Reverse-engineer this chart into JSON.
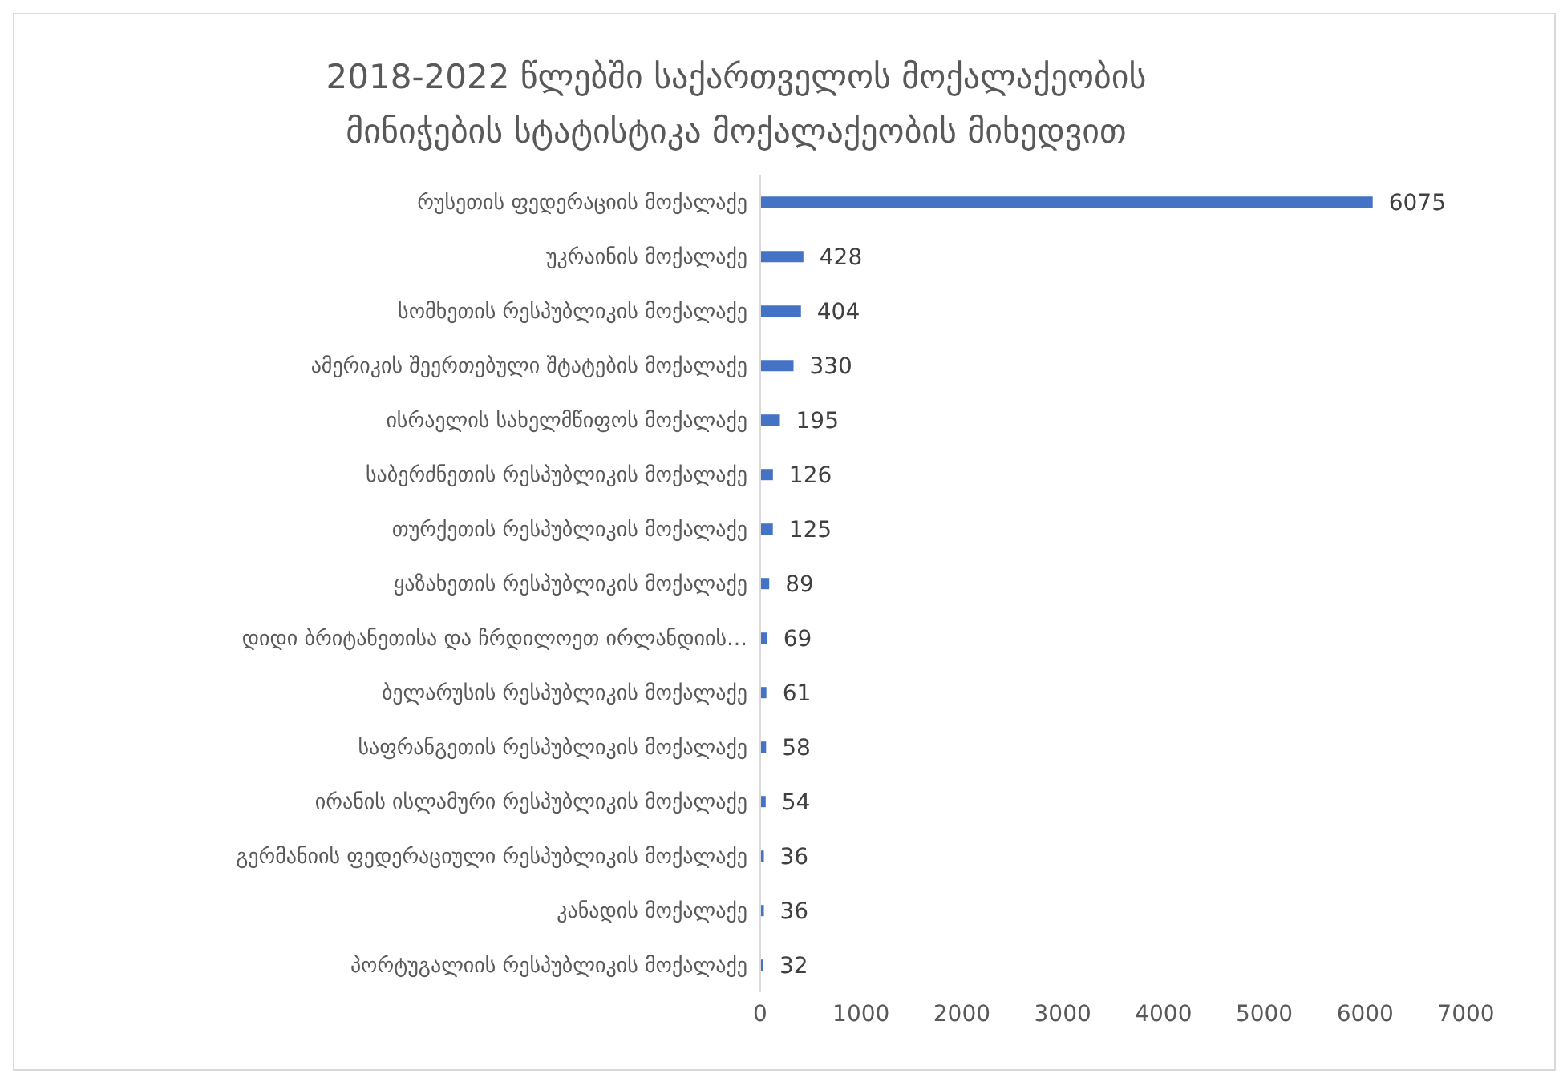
{
  "chart_data": {
    "type": "bar",
    "orientation": "horizontal",
    "title": "2018-2022 წლებში საქართველოს  მოქალაქეობის მინიჭების სტატისტიკა მოქალაქეობის  მიხედვით",
    "categories": [
      "რუსეთის ფედერაციის მოქალაქე",
      "უკრაინის  მოქალაქე",
      "სომხეთის  რესპუბლიკის მოქალაქე",
      "ამერიკის შეერთებული შტატების  მოქალაქე",
      "ისრაელის  სახელმწიფოს მოქალაქე",
      "საბერძნეთის რესპუბლიკის მოქალაქე",
      "თურქეთის რესპუბლიკის მოქალაქე",
      "ყაზახეთის  რესპუბლიკის მოქალაქე",
      "დიდი ბრიტანეთისა და ჩრდილოეთ  ირლანდიის…",
      "ბელარუსის რესპუბლიკის მოქალაქე",
      "საფრანგეთის რესპუბლიკის მოქალაქე",
      "ირანის ისლამური  რესპუბლიკის მოქალაქე",
      "გერმანიის  ფედერაციული რესპუბლიკის მოქალაქე",
      "კანადის მოქალაქე",
      "პორტუგალიის რესპუბლიკის მოქალაქე"
    ],
    "values": [
      6075,
      428,
      404,
      330,
      195,
      126,
      125,
      89,
      69,
      61,
      58,
      54,
      36,
      36,
      32
    ],
    "color": "#4472c4",
    "xlim": [
      0,
      7000
    ],
    "xticks": [
      0,
      1000,
      2000,
      3000,
      4000,
      5000,
      6000,
      7000
    ],
    "data_labels": true,
    "grid": false,
    "legend": false
  }
}
